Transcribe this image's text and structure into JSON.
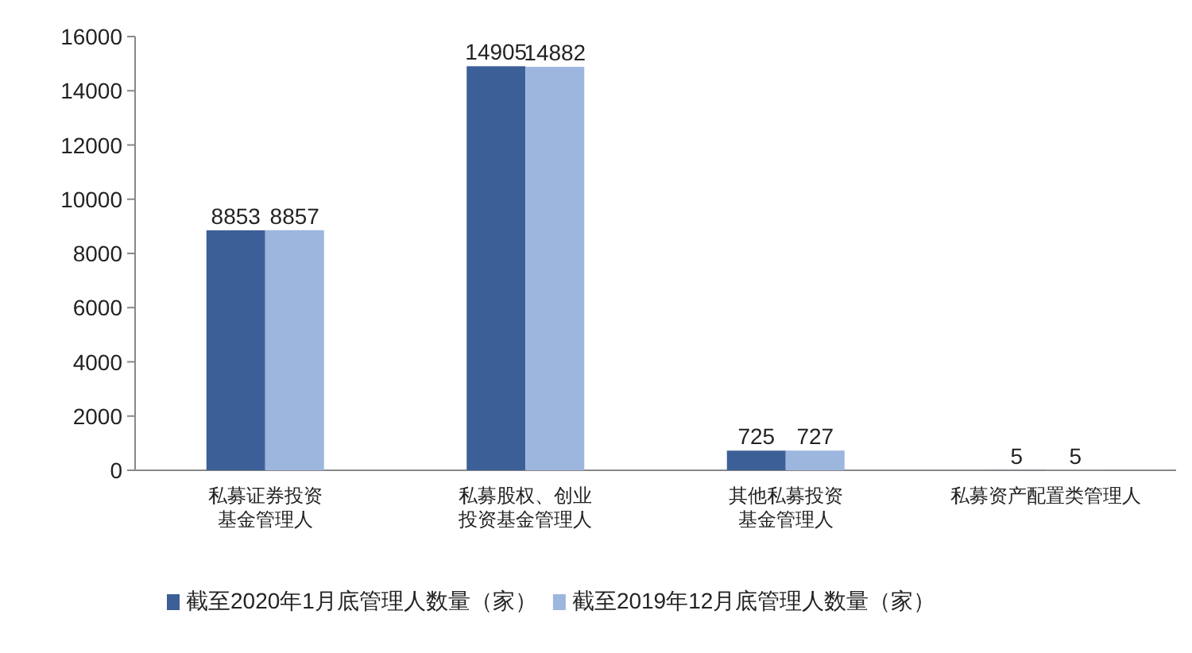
{
  "chart_data": {
    "type": "bar",
    "categories": [
      "私募证券投资基金管理人",
      "私募股权、创业投资基金管理人",
      "其他私募投资基金管理人",
      "私募资产配置类管理人"
    ],
    "series": [
      {
        "name": "截至2020年1月底管理人数量（家）",
        "color": "#3d5f98",
        "values": [
          8853,
          14905,
          725,
          5
        ]
      },
      {
        "name": "截至2019年12月底管理人数量（家）",
        "color": "#9cb6de",
        "values": [
          8857,
          14882,
          727,
          5
        ]
      }
    ],
    "ylim": [
      0,
      16000
    ],
    "yticks": [
      0,
      2000,
      4000,
      6000,
      8000,
      10000,
      12000,
      14000,
      16000
    ],
    "data_labels": true,
    "grid": false,
    "legend": "bottom"
  }
}
